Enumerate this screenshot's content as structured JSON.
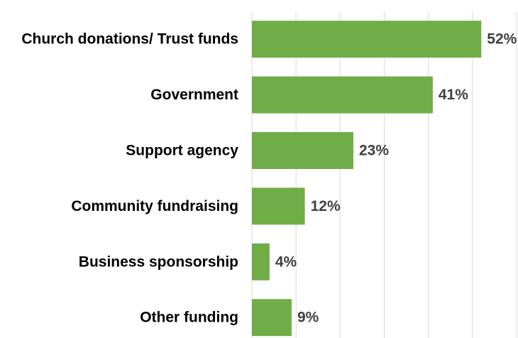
{
  "chart_data": {
    "type": "bar",
    "orientation": "horizontal",
    "categories": [
      "Church donations/ Trust funds",
      "Government",
      "Support agency",
      "Community fundraising",
      "Business sponsorship",
      "Other funding"
    ],
    "values": [
      52,
      41,
      23,
      12,
      4,
      9
    ],
    "value_labels": [
      "52%",
      "41%",
      "23%",
      "12%",
      "4%",
      "9%"
    ],
    "xlim": [
      0,
      60
    ],
    "grid": "vertical",
    "bar_color": "#70ad47",
    "grid_color": "#d9d9d9",
    "label_color": "#404040"
  }
}
